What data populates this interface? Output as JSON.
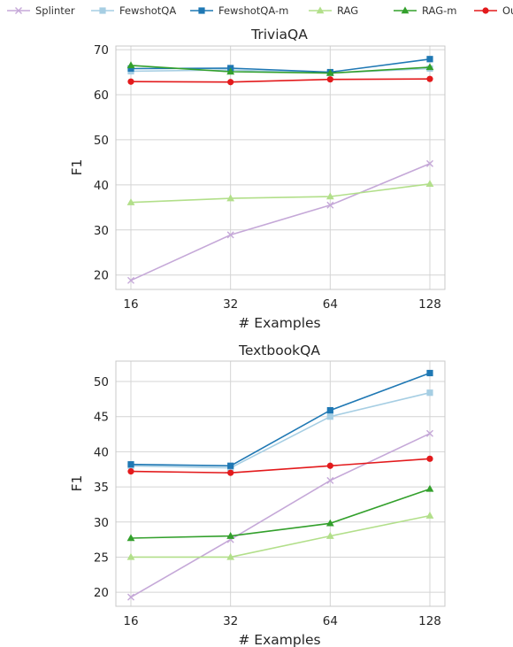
{
  "legend": [
    {
      "name": "Splinter",
      "color": "#c5a8d8",
      "marker": "x"
    },
    {
      "name": "FewshotQA",
      "color": "#a6cee3",
      "marker": "square"
    },
    {
      "name": "FewshotQA-m",
      "color": "#1f78b4",
      "marker": "square"
    },
    {
      "name": "RAG",
      "color": "#b2df8a",
      "marker": "triangle"
    },
    {
      "name": "RAG-m",
      "color": "#33a02c",
      "marker": "triangle"
    },
    {
      "name": "Ours",
      "color": "#e31a1c",
      "marker": "circle"
    }
  ],
  "chart_data": [
    {
      "type": "line",
      "title": "TriviaQA",
      "xlabel": "# Examples",
      "ylabel": "F1",
      "x": [
        16,
        32,
        64,
        128
      ],
      "x_ticks": [
        "16",
        "32",
        "64",
        "128"
      ],
      "x_scale": "log2",
      "y_ticks": [
        20,
        30,
        40,
        50,
        60,
        70
      ],
      "ylim": [
        16.8,
        70.8
      ],
      "grid": true,
      "series": [
        {
          "name": "Splinter",
          "values": [
            18.8,
            28.9,
            35.5,
            44.7
          ]
        },
        {
          "name": "FewshotQA",
          "values": [
            65.2,
            65.5,
            64.8,
            65.8
          ]
        },
        {
          "name": "FewshotQA-m",
          "values": [
            65.8,
            65.9,
            65.0,
            67.9
          ]
        },
        {
          "name": "RAG",
          "values": [
            36.1,
            37.0,
            37.4,
            40.2
          ]
        },
        {
          "name": "RAG-m",
          "values": [
            66.5,
            65.1,
            64.8,
            66.1
          ]
        },
        {
          "name": "Ours",
          "values": [
            62.9,
            62.8,
            63.4,
            63.5
          ]
        }
      ]
    },
    {
      "type": "line",
      "title": "TextbookQA",
      "xlabel": "# Examples",
      "ylabel": "F1",
      "x": [
        16,
        32,
        64,
        128
      ],
      "x_ticks": [
        "16",
        "32",
        "64",
        "128"
      ],
      "x_scale": "log2",
      "y_ticks": [
        20,
        25,
        30,
        35,
        40,
        45,
        50
      ],
      "ylim": [
        18.0,
        52.9
      ],
      "grid": true,
      "series": [
        {
          "name": "Splinter",
          "values": [
            19.3,
            27.5,
            35.9,
            42.6
          ]
        },
        {
          "name": "FewshotQA",
          "values": [
            38.0,
            37.7,
            45.0,
            48.4
          ]
        },
        {
          "name": "FewshotQA-m",
          "values": [
            38.2,
            38.0,
            45.9,
            51.2
          ]
        },
        {
          "name": "RAG",
          "values": [
            25.0,
            25.0,
            28.0,
            30.9
          ]
        },
        {
          "name": "RAG-m",
          "values": [
            27.7,
            28.0,
            29.8,
            34.7
          ]
        },
        {
          "name": "Ours",
          "values": [
            37.2,
            37.0,
            38.0,
            39.0
          ]
        }
      ]
    }
  ]
}
